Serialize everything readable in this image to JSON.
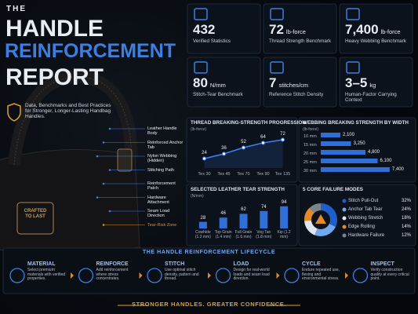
{
  "header": {
    "pre": "THE",
    "line1": "HANDLE",
    "line2": "REINFORCEMENT",
    "line3": "REPORT",
    "subtitle": "Data, Benchmarks and Best Practices for Stronger, Longer-Lasting Handbag Handles."
  },
  "stats": [
    {
      "value": "432",
      "label": "Verified Statistics"
    },
    {
      "value": "72",
      "unit": "lb-force",
      "label": "Thread Strength Benchmark"
    },
    {
      "value": "7,400",
      "unit": "lb-force",
      "label": "Heavy Webbing Benchmark"
    },
    {
      "value": "80",
      "unit": "N/mm",
      "label": "Stitch-Tear Benchmark"
    },
    {
      "value": "7",
      "unit": "stitches/cm",
      "label": "Reference Stitch Density"
    },
    {
      "value": "3–5",
      "unit": "kg",
      "label": "Human-Factor Carrying Context"
    }
  ],
  "bag": {
    "tag": "CRAFTED TO LAST",
    "callouts": [
      "Leather Handle Body",
      "Reinforced Anchor Tab",
      "Nylon Webbing (Hidden)",
      "Stitching Path",
      "Reinforcement Patch",
      "Hardware Attachment",
      "Seam Load Direction",
      "Tear-Risk Zone"
    ]
  },
  "chart_data": [
    {
      "type": "line",
      "title": "THREAD BREAKING-STRENGTH PROGRESSION",
      "y_label": "(lb-force)",
      "categories": [
        "Tex 30",
        "Tex 45",
        "Tex 70",
        "Tex 90",
        "Tex 135"
      ],
      "values": [
        24,
        36,
        52,
        64,
        72
      ],
      "color": "#3b82f6",
      "ylim": [
        0,
        80
      ]
    },
    {
      "type": "hbar",
      "title": "WEBBING BREAKING STRENGTH BY WIDTH",
      "y_label": "(lb-force)",
      "categories": [
        "10 mm",
        "15 mm",
        "20 mm",
        "25 mm",
        "30 mm"
      ],
      "values": [
        2100,
        3250,
        4800,
        6100,
        7400
      ],
      "value_labels": [
        "2,100",
        "3,250",
        "4,800",
        "6,100",
        "7,400"
      ],
      "color": "#2f6fd6",
      "xlim": [
        0,
        8000
      ]
    },
    {
      "type": "bar",
      "title": "SELECTED LEATHER TEAR STRENGTH",
      "y_label": "(N/mm)",
      "categories": [
        "Cowhide (1.2 mm)",
        "Top Grain (1.4 mm)",
        "Full Grain (1.6 mm)",
        "Veg Tan (1.8 mm)",
        "Kip (1.2 mm)"
      ],
      "values": [
        28,
        46,
        62,
        74,
        94
      ],
      "color": "#2f6fd6",
      "ylim": [
        0,
        100
      ]
    },
    {
      "type": "donut",
      "title": "5 CORE FAILURE MODES",
      "categories": [
        "Stitch Pull-Out",
        "Anchor Tab Tear",
        "Webbing Stretch",
        "Edge Rolling",
        "Hardware Failure"
      ],
      "values": [
        32,
        24,
        18,
        14,
        12
      ],
      "value_labels": [
        "32%",
        "24%",
        "18%",
        "14%",
        "12%"
      ],
      "colors": [
        "#1f5fc9",
        "#6fa8f0",
        "#dfe6ef",
        "#e08a2a",
        "#7d838d"
      ]
    }
  ],
  "lifecycle": {
    "title": "THE HANDLE REINFORCEMENT LIFECYCLE",
    "steps": [
      {
        "name": "MATERIAL",
        "text": "Select premium materials with verified properties."
      },
      {
        "name": "REINFORCE",
        "text": "Add reinforcement where stress concentrates."
      },
      {
        "name": "STITCH",
        "text": "Use optimal stitch density, pattern and thread."
      },
      {
        "name": "LOAD",
        "text": "Design for real-world loads and seam load direction."
      },
      {
        "name": "CYCLE",
        "text": "Endure repeated use, flexing and environmental stress."
      },
      {
        "name": "INSPECT",
        "text": "Verify construction quality at every critical point."
      }
    ]
  },
  "footer": "STRONGER HANDLES. GREATER CONFIDENCE."
}
